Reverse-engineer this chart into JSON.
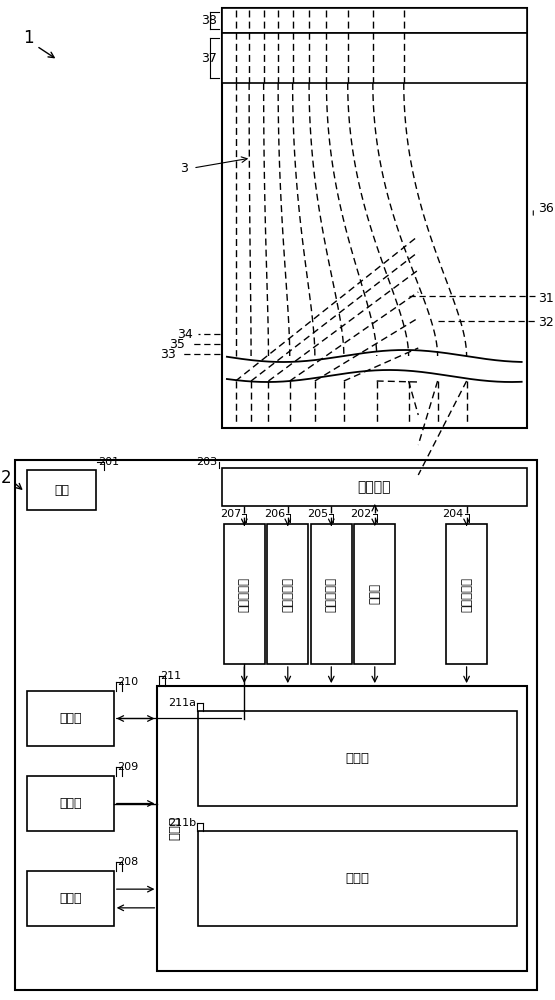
{
  "bg_color": "#ffffff",
  "probe_label": "1",
  "system_label": "2",
  "label_36": "36",
  "label_37": "37",
  "label_38": "38",
  "label_3": "3",
  "label_31": "31",
  "label_32": "32",
  "label_33": "33",
  "label_34": "34",
  "label_35": "35",
  "label_201": "201",
  "label_202": "202",
  "label_203": "203",
  "label_204": "204",
  "label_205": "205",
  "label_206": "206",
  "label_207": "207",
  "label_208": "208",
  "label_209": "209",
  "label_210": "210",
  "label_211": "211",
  "label_211a": "211a",
  "label_211b": "211b",
  "text_denso": "連絡器部",
  "text_power": "電源",
  "text_record": "記録部",
  "text_output": "輸出部",
  "text_input": "入力部",
  "text_control": "制御部",
  "text_judge": "判定部",
  "text_calc": "運算部",
  "text_det1": "第一検測部",
  "text_det2": "第二検測部",
  "text_det3": "第三検測部",
  "text_det4": "第四検測部",
  "text_light": "光源部"
}
